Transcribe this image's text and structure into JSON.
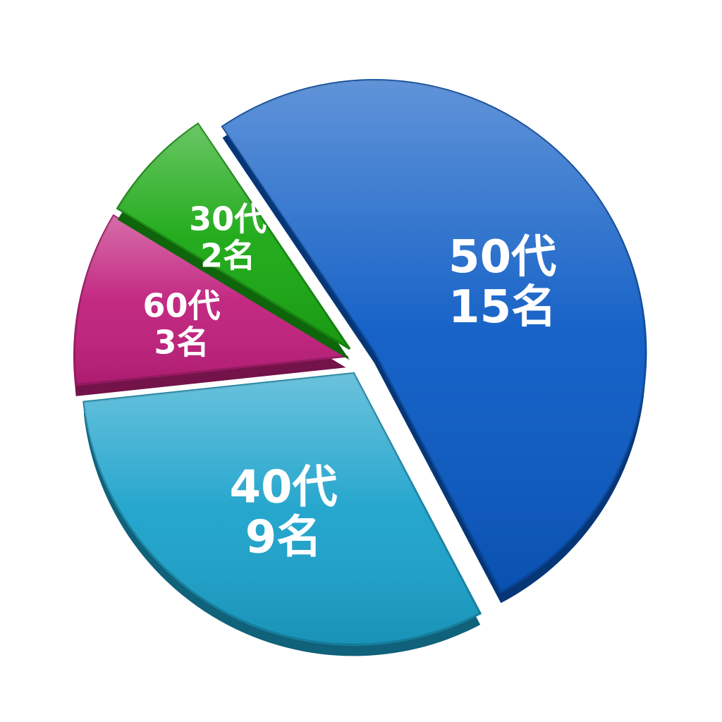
{
  "chart_data": {
    "type": "pie",
    "title": "",
    "start_angle_deg": -34,
    "direction": "clockwise",
    "slices": [
      {
        "category": "50代",
        "value": 15,
        "value_label": "15名",
        "color": "#0a5ac4"
      },
      {
        "category": "40代",
        "value": 9,
        "value_label": "9名",
        "color": "#1ba2cb"
      },
      {
        "category": "60代",
        "value": 3,
        "value_label": "3名",
        "color": "#c01f7c"
      },
      {
        "category": "30代",
        "value": 2,
        "value_label": "2名",
        "color": "#19a812"
      }
    ]
  }
}
